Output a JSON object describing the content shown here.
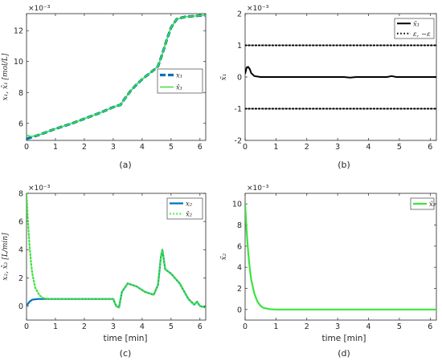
{
  "figure": {
    "captions": [
      "(a)",
      "(b)",
      "(c)",
      "(d)"
    ],
    "xlabel": "time [min]"
  },
  "chart_data": [
    {
      "type": "line",
      "caption": "(a)",
      "ylabel": "x₁, x̂₁ [mol/L]",
      "multiplier": "×10⁻³",
      "xlim": [
        0,
        6.2
      ],
      "ylim": [
        4.9,
        13.1
      ],
      "xticks": [
        0,
        1,
        2,
        3,
        4,
        5,
        6
      ],
      "yticks": [
        6,
        8,
        10,
        12
      ],
      "grid": false,
      "legend_position": "right-middle",
      "series": [
        {
          "name": "x₁",
          "color": "#0072BD",
          "style": "dash",
          "width": 3.2,
          "points": [
            [
              0,
              5.0
            ],
            [
              0.5,
              5.3
            ],
            [
              1,
              5.65
            ],
            [
              1.5,
              5.95
            ],
            [
              2,
              6.3
            ],
            [
              2.5,
              6.65
            ],
            [
              3,
              7.05
            ],
            [
              3.25,
              7.2
            ],
            [
              3.4,
              7.6
            ],
            [
              3.6,
              8.1
            ],
            [
              3.8,
              8.5
            ],
            [
              4.0,
              8.85
            ],
            [
              4.2,
              9.15
            ],
            [
              4.4,
              9.45
            ],
            [
              4.55,
              9.7
            ],
            [
              4.7,
              10.5
            ],
            [
              4.85,
              11.4
            ],
            [
              5.0,
              12.2
            ],
            [
              5.2,
              12.75
            ],
            [
              5.5,
              12.9
            ],
            [
              6.2,
              13.0
            ]
          ]
        },
        {
          "name": "x̂₁",
          "color": "#3AE43A",
          "style": "solid",
          "width": 1.6,
          "points": [
            [
              0,
              5.25
            ],
            [
              0.15,
              5.15
            ],
            [
              0.3,
              5.2
            ],
            [
              0.5,
              5.3
            ],
            [
              1,
              5.65
            ],
            [
              1.5,
              5.95
            ],
            [
              2,
              6.3
            ],
            [
              2.5,
              6.65
            ],
            [
              3,
              7.05
            ],
            [
              3.25,
              7.2
            ],
            [
              3.4,
              7.6
            ],
            [
              3.6,
              8.1
            ],
            [
              3.8,
              8.5
            ],
            [
              4.0,
              8.85
            ],
            [
              4.2,
              9.15
            ],
            [
              4.4,
              9.45
            ],
            [
              4.55,
              9.7
            ],
            [
              4.7,
              10.5
            ],
            [
              4.85,
              11.4
            ],
            [
              5.0,
              12.2
            ],
            [
              5.2,
              12.75
            ],
            [
              5.5,
              12.9
            ],
            [
              6.2,
              13.0
            ]
          ]
        }
      ]
    },
    {
      "type": "line",
      "caption": "(b)",
      "ylabel": "x̃₁",
      "multiplier": "×10⁻³",
      "xlim": [
        0,
        6.2
      ],
      "ylim": [
        -2,
        2
      ],
      "xticks": [
        0,
        1,
        2,
        3,
        4,
        5,
        6
      ],
      "yticks": [
        -2,
        -1,
        0,
        1,
        2
      ],
      "grid": false,
      "legend_position": "top-right",
      "series": [
        {
          "name": "x̃₁",
          "color": "#000000",
          "style": "solid",
          "width": 2.0,
          "points": [
            [
              0,
              0.1
            ],
            [
              0.05,
              0.3
            ],
            [
              0.1,
              0.32
            ],
            [
              0.15,
              0.25
            ],
            [
              0.2,
              0.12
            ],
            [
              0.3,
              0.03
            ],
            [
              0.5,
              0.0
            ],
            [
              3.2,
              0.0
            ],
            [
              3.4,
              -0.02
            ],
            [
              3.6,
              0.0
            ],
            [
              4.6,
              0.0
            ],
            [
              4.75,
              0.03
            ],
            [
              4.9,
              0.0
            ],
            [
              6.2,
              0.0
            ]
          ]
        },
        {
          "name": "ε, −ε",
          "color": "#000000",
          "style": "dot",
          "width": 2.0,
          "points": [
            [
              0,
              1
            ],
            [
              6.2,
              1
            ]
          ]
        },
        {
          "name": "",
          "color": "#000000",
          "style": "dot",
          "width": 2.0,
          "points": [
            [
              0,
              -1
            ],
            [
              6.2,
              -1
            ]
          ]
        }
      ]
    },
    {
      "type": "line",
      "caption": "(c)",
      "ylabel": "x₂, x̂₂ [L/min]",
      "multiplier": "×10⁻³",
      "xlim": [
        0,
        6.2
      ],
      "ylim": [
        -1,
        8
      ],
      "xticks": [
        0,
        1,
        2,
        3,
        4,
        5,
        6
      ],
      "yticks": [
        0,
        2,
        4,
        6,
        8
      ],
      "grid": false,
      "legend_position": "top-right",
      "series": [
        {
          "name": "x₂",
          "color": "#0072BD",
          "style": "solid",
          "width": 2.2,
          "points": [
            [
              0,
              0
            ],
            [
              0.1,
              0.3
            ],
            [
              0.2,
              0.45
            ],
            [
              0.4,
              0.5
            ],
            [
              3.0,
              0.5
            ],
            [
              3.1,
              0.0
            ],
            [
              3.2,
              -0.1
            ],
            [
              3.3,
              1.0
            ],
            [
              3.5,
              1.6
            ],
            [
              3.8,
              1.4
            ],
            [
              4.1,
              1.0
            ],
            [
              4.4,
              0.8
            ],
            [
              4.55,
              1.5
            ],
            [
              4.65,
              3.5
            ],
            [
              4.7,
              4.0
            ],
            [
              4.8,
              2.6
            ],
            [
              5.0,
              2.3
            ],
            [
              5.3,
              1.6
            ],
            [
              5.6,
              0.5
            ],
            [
              5.8,
              0.1
            ],
            [
              5.9,
              0.3
            ],
            [
              6.0,
              0.0
            ],
            [
              6.2,
              -0.1
            ]
          ]
        },
        {
          "name": "x̂₂",
          "color": "#3AE43A",
          "style": "dot",
          "width": 2.2,
          "points": [
            [
              0,
              8.0
            ],
            [
              0.05,
              6.0
            ],
            [
              0.1,
              4.4
            ],
            [
              0.15,
              3.2
            ],
            [
              0.2,
              2.3
            ],
            [
              0.3,
              1.3
            ],
            [
              0.45,
              0.75
            ],
            [
              0.6,
              0.55
            ],
            [
              0.8,
              0.5
            ],
            [
              3.0,
              0.5
            ],
            [
              3.1,
              0.0
            ],
            [
              3.2,
              -0.1
            ],
            [
              3.3,
              1.0
            ],
            [
              3.5,
              1.6
            ],
            [
              3.8,
              1.4
            ],
            [
              4.1,
              1.0
            ],
            [
              4.4,
              0.8
            ],
            [
              4.55,
              1.5
            ],
            [
              4.65,
              3.5
            ],
            [
              4.7,
              4.0
            ],
            [
              4.8,
              2.6
            ],
            [
              5.0,
              2.3
            ],
            [
              5.3,
              1.6
            ],
            [
              5.6,
              0.5
            ],
            [
              5.8,
              0.1
            ],
            [
              5.9,
              0.3
            ],
            [
              6.0,
              0.0
            ],
            [
              6.2,
              -0.1
            ]
          ]
        }
      ]
    },
    {
      "type": "line",
      "caption": "(d)",
      "ylabel": "x̃₂",
      "multiplier": "×10⁻³",
      "xlim": [
        0,
        6.2
      ],
      "ylim": [
        -1,
        11
      ],
      "xticks": [
        0,
        1,
        2,
        3,
        4,
        5,
        6
      ],
      "yticks": [
        0,
        2,
        4,
        6,
        8,
        10
      ],
      "grid": false,
      "legend_position": "top-right",
      "series": [
        {
          "name": "x̃₂",
          "color": "#3AE43A",
          "style": "solid",
          "width": 2.2,
          "points": [
            [
              0,
              10.0
            ],
            [
              0.05,
              7.4
            ],
            [
              0.1,
              5.4
            ],
            [
              0.15,
              3.9
            ],
            [
              0.2,
              2.8
            ],
            [
              0.3,
              1.5
            ],
            [
              0.4,
              0.75
            ],
            [
              0.5,
              0.35
            ],
            [
              0.6,
              0.15
            ],
            [
              0.8,
              0.03
            ],
            [
              1.0,
              0.0
            ],
            [
              6.2,
              0.0
            ]
          ]
        }
      ]
    }
  ]
}
